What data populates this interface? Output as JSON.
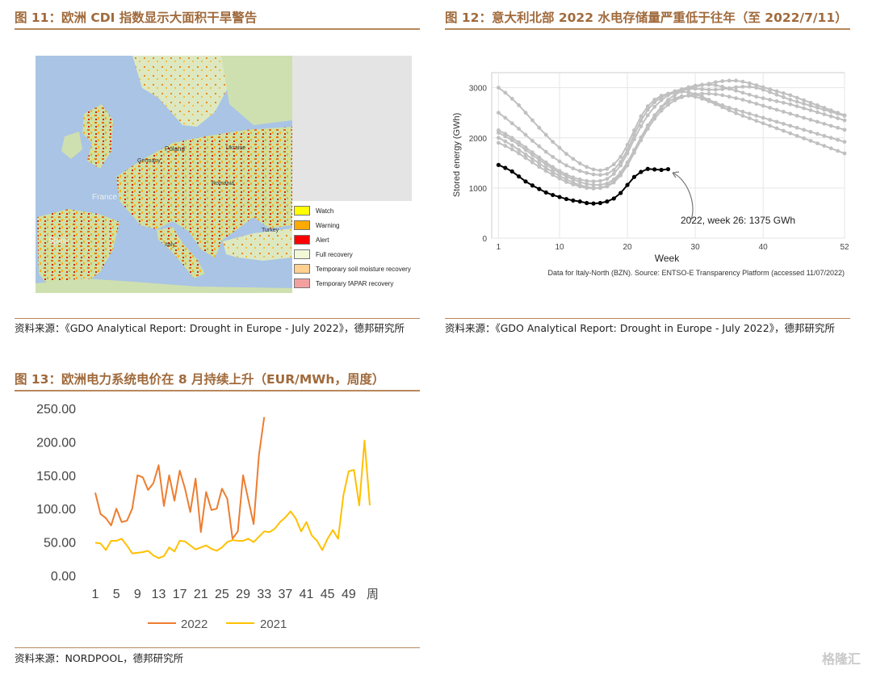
{
  "figures": [
    {
      "title": "图 11：欧洲 CDI 指数显示大面积干旱警告",
      "source": "资料来源：《GDO Analytical Report: Drought in Europe - July 2022》，德邦研究所",
      "map_labels": [
        "Spain",
        "France",
        "Italy",
        "Poland",
        "Turkey",
        "Ukraine",
        "Romania",
        "Germany"
      ],
      "legend": [
        {
          "label": "Watch",
          "color": "#ffff00"
        },
        {
          "label": "Warning",
          "color": "#ffaa00"
        },
        {
          "label": "Alert",
          "color": "#ff0000"
        },
        {
          "label": "Full recovery",
          "color": "#f0f8d8"
        },
        {
          "label": "Temporary soil moisture recovery",
          "color": "#ffd090"
        },
        {
          "label": "Temporary fAPAR recovery",
          "color": "#f4a0a0"
        }
      ]
    },
    {
      "title": "图 12：意大利北部 2022 水电存储量严重低于往年（至 2022/7/11）",
      "source": "资料来源：《GDO Analytical Report: Drought in Europe - July 2022》，德邦研究所"
    },
    {
      "title": "图 13：欧洲电力系统电价在 8 月持续上升（EUR/MWh，周度）",
      "source": "资料来源：NORDPOOL，德邦研究所"
    }
  ],
  "watermark": "格隆汇",
  "chart_data": [
    {
      "type": "line",
      "xlabel": "Week",
      "ylabel": "Stored energy (GWh)",
      "xlim": [
        0,
        52
      ],
      "ylim": [
        0,
        3300
      ],
      "xticks": [
        1,
        10,
        20,
        30,
        40,
        52
      ],
      "yticks": [
        0,
        1000,
        2000,
        3000
      ],
      "annotation": "2022, week 26: 1375 GWh",
      "footnote": "Data for Italy-North (BZN). Source: ENTSO-E Transparency Platform (accessed 11/07/2022)",
      "x": [
        1,
        2,
        3,
        4,
        5,
        6,
        7,
        8,
        9,
        10,
        11,
        12,
        13,
        14,
        15,
        16,
        17,
        18,
        19,
        20,
        21,
        22,
        23,
        24,
        25,
        26
      ],
      "series": [
        {
          "name": "2022",
          "color": "#000000",
          "values": [
            1460,
            1400,
            1330,
            1230,
            1130,
            1050,
            980,
            910,
            860,
            820,
            780,
            750,
            730,
            700,
            690,
            700,
            730,
            790,
            900,
            1060,
            1220,
            1320,
            1380,
            1370,
            1360,
            1375
          ]
        }
      ],
      "other_years_color": "#c0c0c0",
      "other_years": [
        [
          3000,
          2900,
          2780,
          2650,
          2500,
          2350,
          2200,
          2060,
          1920,
          1800,
          1680,
          1580,
          1490,
          1420,
          1370,
          1350,
          1380,
          1470,
          1620,
          1860,
          2150,
          2430,
          2630,
          2760,
          2840,
          2880,
          2900,
          2920,
          2910,
          2870,
          2820,
          2760,
          2700,
          2650,
          2600,
          2560,
          2520,
          2480,
          2440,
          2400,
          2360,
          2320,
          2280,
          2240,
          2200,
          2160,
          2120,
          2080,
          2040,
          2000,
          1960,
          1920
        ],
        [
          2500,
          2400,
          2290,
          2180,
          2060,
          1940,
          1830,
          1720,
          1620,
          1530,
          1450,
          1390,
          1340,
          1300,
          1270,
          1260,
          1280,
          1360,
          1520,
          1760,
          2060,
          2340,
          2560,
          2710,
          2810,
          2880,
          2930,
          2970,
          3010,
          3040,
          3060,
          3060,
          3050,
          3020,
          2980,
          2940,
          2900,
          2860,
          2820,
          2790,
          2760,
          2730,
          2700,
          2670,
          2630,
          2590,
          2550,
          2510,
          2470,
          2430,
          2390,
          2350
        ],
        [
          2150,
          2080,
          2000,
          1910,
          1810,
          1710,
          1610,
          1510,
          1420,
          1340,
          1270,
          1210,
          1170,
          1140,
          1130,
          1140,
          1180,
          1280,
          1450,
          1690,
          1970,
          2230,
          2450,
          2620,
          2750,
          2850,
          2910,
          2950,
          2970,
          2980,
          2970,
          2960,
          2960,
          2970,
          2990,
          3010,
          3020,
          3020,
          3000,
          2960,
          2910,
          2860,
          2810,
          2760,
          2720,
          2680,
          2640,
          2600,
          2560,
          2520,
          2480,
          2440
        ],
        [
          2100,
          2030,
          1950,
          1860,
          1760,
          1660,
          1560,
          1470,
          1380,
          1300,
          1230,
          1170,
          1120,
          1080,
          1060,
          1060,
          1090,
          1170,
          1310,
          1510,
          1760,
          2010,
          2250,
          2450,
          2620,
          2760,
          2860,
          2930,
          2980,
          3020,
          3050,
          3080,
          3110,
          3130,
          3140,
          3140,
          3120,
          3090,
          3050,
          3010,
          2970,
          2930,
          2890,
          2850,
          2800,
          2750,
          2700,
          2650,
          2600,
          2550,
          2500,
          2450
        ],
        [
          2000,
          1930,
          1850,
          1760,
          1670,
          1580,
          1490,
          1400,
          1320,
          1240,
          1170,
          1110,
          1060,
          1020,
          1000,
          1000,
          1030,
          1110,
          1250,
          1450,
          1700,
          1950,
          2180,
          2380,
          2540,
          2660,
          2750,
          2810,
          2850,
          2870,
          2880,
          2880,
          2870,
          2850,
          2820,
          2790,
          2760,
          2720,
          2680,
          2640,
          2600,
          2560,
          2520,
          2480,
          2440,
          2400,
          2360,
          2320,
          2280,
          2240,
          2200,
          2160
        ],
        [
          1900,
          1840,
          1770,
          1690,
          1600,
          1510,
          1420,
          1340,
          1260,
          1190,
          1120,
          1070,
          1030,
          1000,
          990,
          1000,
          1040,
          1130,
          1280,
          1490,
          1740,
          2000,
          2240,
          2440,
          2600,
          2720,
          2790,
          2830,
          2840,
          2820,
          2780,
          2730,
          2670,
          2610,
          2550,
          2490,
          2440,
          2390,
          2340,
          2290,
          2240,
          2190,
          2140,
          2090,
          2040,
          1990,
          1940,
          1890,
          1840,
          1790,
          1740,
          1690
        ]
      ]
    },
    {
      "type": "line",
      "yticks": [
        "250.00",
        "200.00",
        "150.00",
        "100.00",
        "50.00",
        "0.00"
      ],
      "ylim": [
        0,
        250
      ],
      "xticks": [
        "1",
        "5",
        "9",
        "13",
        "17",
        "21",
        "25",
        "29",
        "33",
        "37",
        "41",
        "45",
        "49"
      ],
      "x_unit_label": "周",
      "legend_position": "bottom",
      "series": [
        {
          "name": "2022",
          "color": "#ed7d31",
          "values": [
            124,
            92,
            86,
            75,
            100,
            80,
            82,
            100,
            150,
            147,
            128,
            138,
            165,
            104,
            150,
            112,
            157,
            130,
            95,
            145,
            65,
            125,
            98,
            100,
            130,
            115,
            55,
            66,
            150,
            113,
            77,
            180,
            237
          ]
        },
        {
          "name": "2021",
          "color": "#ffc000",
          "values": [
            49,
            48,
            38,
            52,
            52,
            55,
            45,
            33,
            34,
            35,
            37,
            30,
            26,
            29,
            42,
            36,
            52,
            51,
            45,
            39,
            42,
            45,
            40,
            37,
            42,
            50,
            53,
            52,
            52,
            55,
            50,
            58,
            66,
            65,
            70,
            80,
            87,
            96,
            85,
            66,
            80,
            60,
            52,
            38,
            55,
            68,
            55,
            120,
            156,
            158,
            105,
            202,
            105
          ]
        }
      ]
    }
  ]
}
